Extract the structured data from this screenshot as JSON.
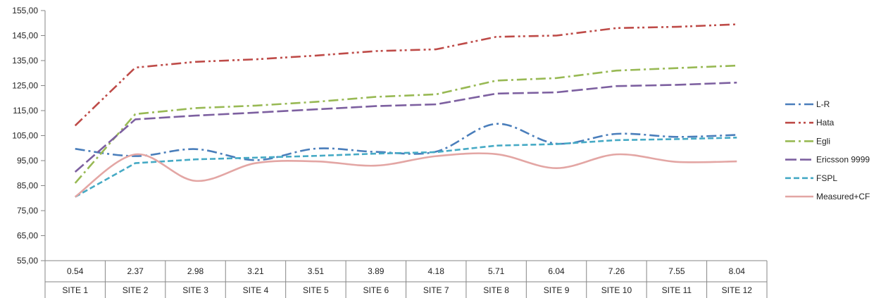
{
  "chart_data": {
    "type": "line",
    "title": "",
    "xlabel": "",
    "ylabel": "",
    "ylim": [
      55,
      155
    ],
    "y_step": 10,
    "y_tick_labels": [
      "55,00",
      "65,00",
      "75,00",
      "85,00",
      "95,00",
      "105,00",
      "115,00",
      "125,00",
      "135,00",
      "145,00",
      "155,00"
    ],
    "categories": [
      "0.54",
      "2.37",
      "2.98",
      "3.21",
      "3.51",
      "3.89",
      "4.18",
      "5.71",
      "6.04",
      "7.26",
      "7.55",
      "8.04"
    ],
    "category_groups": [
      "SITE 1",
      "SITE 2",
      "SITE 3",
      "SITE 4",
      "SITE 5",
      "SITE 6",
      "SITE 7",
      "SITE 8",
      "SITE 9",
      "SITE 10",
      "SITE 11",
      "SITE 12"
    ],
    "grid": false,
    "legend_position": "right",
    "series": [
      {
        "name": "L-R",
        "color": "#4a7ebb",
        "dash": "dashdot",
        "smooth": true,
        "values": [
          99.7,
          96.8,
          99.6,
          95.2,
          99.8,
          98.5,
          98.6,
          109.7,
          101.8,
          105.7,
          104.5,
          105.3
        ]
      },
      {
        "name": "Hata",
        "color": "#be4b48",
        "dash": "dashdotdot",
        "smooth": false,
        "values": [
          109.0,
          132.2,
          134.5,
          135.5,
          137.0,
          138.8,
          139.5,
          144.5,
          145.0,
          148.0,
          148.5,
          149.5
        ]
      },
      {
        "name": "Egli",
        "color": "#98b954",
        "dash": "dashdot",
        "smooth": false,
        "values": [
          86.0,
          113.6,
          116.0,
          117.0,
          118.5,
          120.5,
          121.5,
          127.0,
          128.0,
          131.0,
          132.0,
          133.0
        ]
      },
      {
        "name": "Ericsson 9999",
        "color": "#7d60a0",
        "dash": "longdash",
        "smooth": false,
        "values": [
          90.5,
          111.5,
          113.0,
          114.2,
          115.5,
          116.8,
          117.5,
          121.8,
          122.3,
          124.8,
          125.3,
          126.2
        ]
      },
      {
        "name": "FSPL",
        "color": "#46aac5",
        "dash": "dash",
        "smooth": false,
        "values": [
          80.5,
          94.0,
          95.5,
          96.2,
          96.9,
          97.8,
          98.4,
          101.0,
          101.6,
          103.2,
          103.6,
          104.2
        ]
      },
      {
        "name": "Measured+CF",
        "color": "#e3a6a4",
        "dash": "solid",
        "smooth": true,
        "values": [
          80.5,
          97.5,
          86.9,
          94.0,
          94.7,
          93.0,
          96.8,
          97.6,
          92.0,
          97.5,
          94.5,
          94.7
        ]
      }
    ]
  }
}
